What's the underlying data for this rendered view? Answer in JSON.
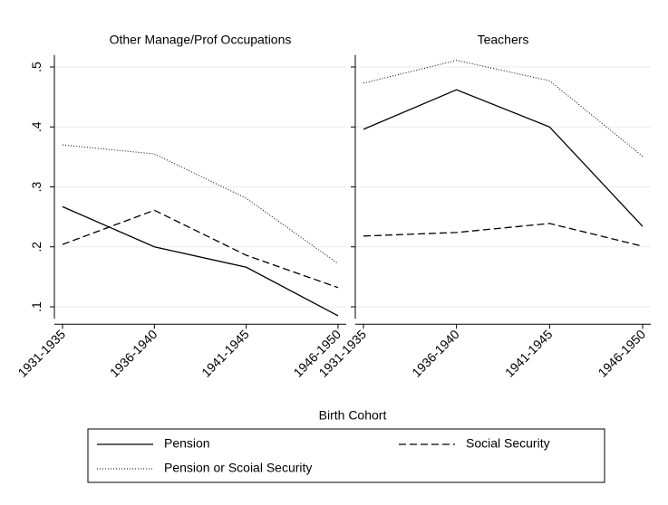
{
  "chart_data": [
    {
      "type": "line",
      "title": "Other Manage/Prof Occupations",
      "categories": [
        "1931-1935",
        "1936-1940",
        "1941-1945",
        "1946-1950"
      ],
      "ylim": [
        0.08,
        0.52
      ],
      "yticks": [
        {
          "value": 0.1,
          "label": ".1"
        },
        {
          "value": 0.2,
          "label": ".2"
        },
        {
          "value": 0.3,
          "label": ".3"
        },
        {
          "value": 0.4,
          "label": ".4"
        },
        {
          "value": 0.5,
          "label": ".5"
        }
      ],
      "grid": true,
      "series": [
        {
          "name": "Pension",
          "color": "#000000",
          "dash": "solid",
          "values": [
            0.267,
            0.2,
            0.166,
            0.085
          ]
        },
        {
          "name": "Social Security",
          "color": "#000000",
          "dash": "dashed",
          "values": [
            0.204,
            0.261,
            0.186,
            0.132
          ]
        },
        {
          "name": "Pension or Scoial Security",
          "color": "#000000",
          "dash": "dotted",
          "values": [
            0.37,
            0.355,
            0.281,
            0.172
          ]
        }
      ]
    },
    {
      "type": "line",
      "title": "Teachers",
      "categories": [
        "1931-1935",
        "1936-1940",
        "1941-1945",
        "1946-1950"
      ],
      "ylim": [
        0.08,
        0.52
      ],
      "yticks": [
        {
          "value": 0.1,
          "label": ".1"
        },
        {
          "value": 0.2,
          "label": ".2"
        },
        {
          "value": 0.3,
          "label": ".3"
        },
        {
          "value": 0.4,
          "label": ".4"
        },
        {
          "value": 0.5,
          "label": ".5"
        }
      ],
      "grid": true,
      "series": [
        {
          "name": "Pension",
          "color": "#000000",
          "dash": "solid",
          "values": [
            0.396,
            0.462,
            0.4,
            0.234
          ]
        },
        {
          "name": "Social Security",
          "color": "#000000",
          "dash": "dashed",
          "values": [
            0.218,
            0.224,
            0.239,
            0.201
          ]
        },
        {
          "name": "Pension or Scoial Security",
          "color": "#000000",
          "dash": "dotted",
          "values": [
            0.473,
            0.511,
            0.477,
            0.351
          ]
        }
      ]
    }
  ],
  "xlabel": "Birth Cohort"
}
